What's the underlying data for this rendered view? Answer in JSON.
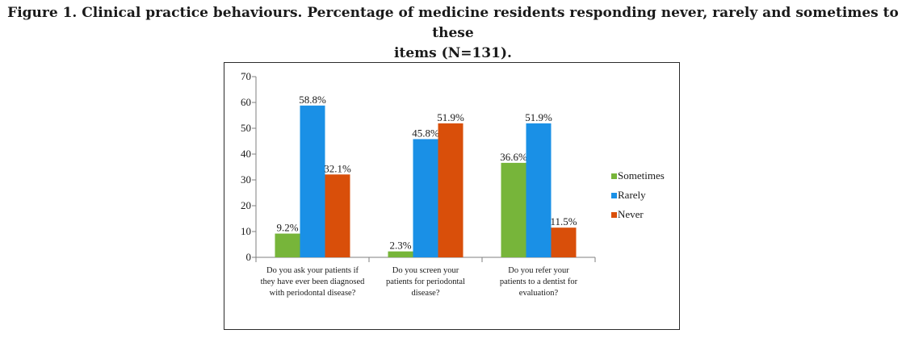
{
  "figure": {
    "caption_line1": "Figure 1. Clinical practice behaviours. Percentage of medicine residents responding never, rarely and sometimes to these",
    "caption_line2": "items (N=131)."
  },
  "chart_data": {
    "type": "bar",
    "title": "",
    "xlabel": "",
    "ylabel": "",
    "ylim": [
      0,
      70
    ],
    "yticks": [
      0,
      10,
      20,
      30,
      40,
      50,
      60,
      70
    ],
    "categories": [
      [
        "Do you ask your patients if",
        "they have ever been diagnosed",
        "with periodontal disease?"
      ],
      [
        "Do you screen your",
        "patients for periodontal",
        "disease?"
      ],
      [
        "Do you refer your",
        "patients to a dentist for",
        "evaluation?"
      ]
    ],
    "series": [
      {
        "name": "Sometimes",
        "color": "#77b53a",
        "values": [
          9.2,
          2.3,
          36.6
        ],
        "labels": [
          "9.2%",
          "2.3%",
          "36.6%"
        ]
      },
      {
        "name": "Rarely",
        "color": "#1a90e6",
        "values": [
          58.8,
          45.8,
          51.9
        ],
        "labels": [
          "58.8%",
          "45.8%",
          "51.9%"
        ]
      },
      {
        "name": "Never",
        "color": "#d94f0a",
        "values": [
          32.1,
          51.9,
          11.5
        ],
        "labels": [
          "32.1%",
          "51.9%",
          "11.5%"
        ]
      }
    ],
    "legend_position": "right",
    "grid": false
  }
}
